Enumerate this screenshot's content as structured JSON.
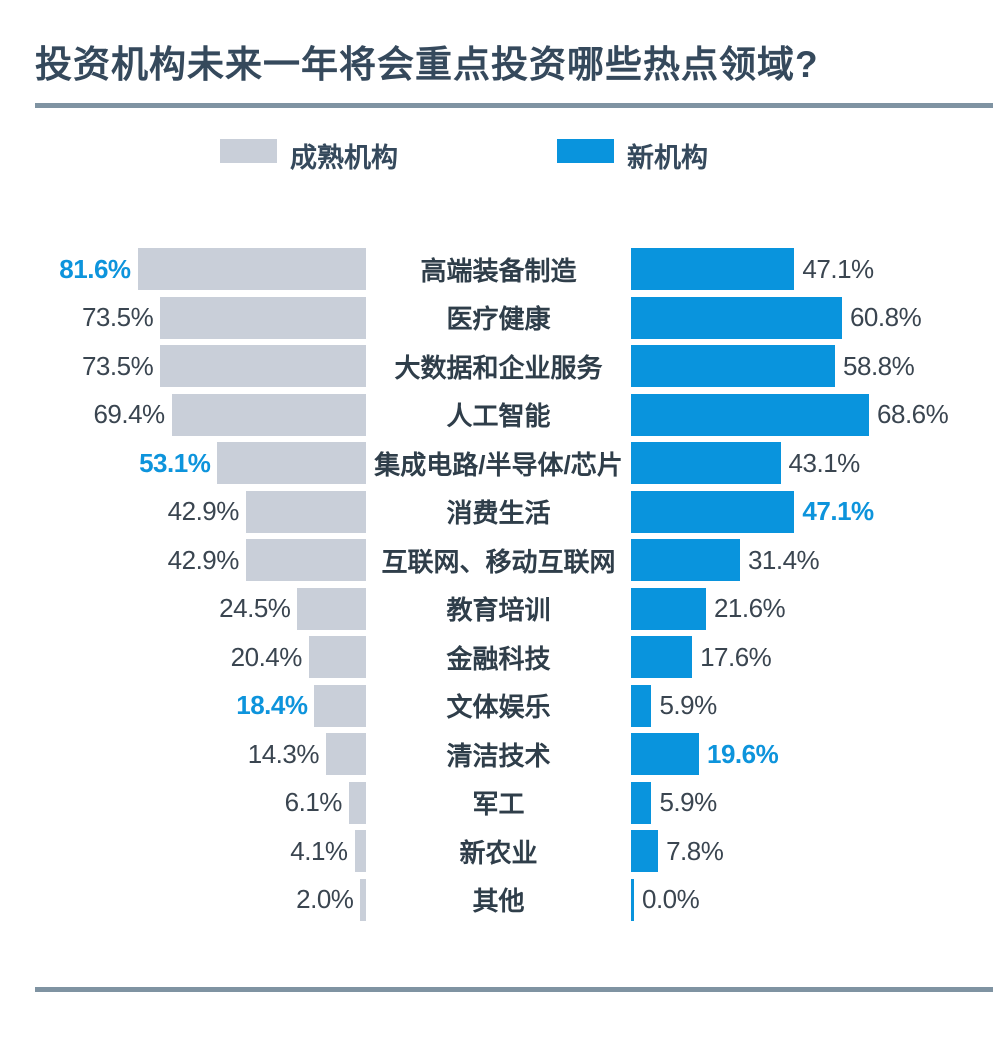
{
  "page": {
    "title": "投资机构未来一年将会重点投资哪些热点领域?"
  },
  "legend": {
    "mature": {
      "label": "成熟机构",
      "color": "#c9cfd9"
    },
    "new": {
      "label": "新机构",
      "color": "#0994dd"
    }
  },
  "colors": {
    "bar_gray": "#c9cfd9",
    "bar_blue": "#0994dd",
    "highlight_blue": "#0d94dc",
    "value_text": "#3a4550",
    "title_text": "#35495c",
    "divider": "#7f93a2"
  },
  "chart_data": {
    "type": "bar",
    "layout": "diverging-horizontal",
    "unit": "%",
    "title": "投资机构未来一年将会重点投资哪些热点领域?",
    "legend_position": "top",
    "grid": false,
    "categories": [
      "高端装备制造",
      "医疗健康",
      "大数据和企业服务",
      "人工智能",
      "集成电路/半导体/芯片",
      "消费生活",
      "互联网、移动互联网",
      "教育培训",
      "金融科技",
      "文体娱乐",
      "清洁技术",
      "军工",
      "新农业",
      "其他"
    ],
    "series": [
      {
        "name": "成熟机构",
        "side": "left",
        "color": "#c9cfd9",
        "values": [
          81.6,
          73.5,
          73.5,
          69.4,
          53.1,
          42.9,
          42.9,
          24.5,
          20.4,
          18.4,
          14.3,
          6.1,
          4.1,
          2.0
        ],
        "highlighted_indices": [
          0,
          4,
          9
        ]
      },
      {
        "name": "新机构",
        "side": "right",
        "color": "#0994dd",
        "values": [
          47.1,
          60.8,
          58.8,
          68.6,
          43.1,
          47.1,
          31.4,
          21.6,
          17.6,
          5.9,
          19.6,
          5.9,
          7.8,
          0.0
        ],
        "highlighted_indices": [
          5,
          10
        ]
      }
    ],
    "value_label_format": "{value}%",
    "xlim_left": [
      0,
      85
    ],
    "xlim_right": [
      0,
      72
    ]
  }
}
